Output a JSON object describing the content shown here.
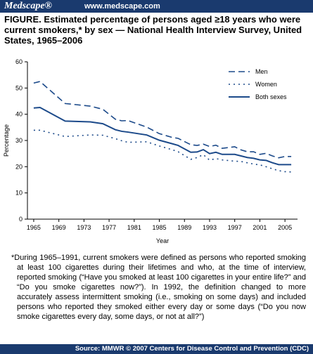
{
  "header": {
    "brand": "Medscape®",
    "url": "www.medscape.com"
  },
  "chart_data": {
    "type": "line",
    "title": "FIGURE. Estimated percentage of persons aged ≥18 years who were current smokers,* by sex — National Health Interview Survey, United States, 1965–2006",
    "x_label": "Year",
    "y_label": "Percentage",
    "x": [
      1965,
      1966,
      1970,
      1974,
      1976,
      1978,
      1979,
      1980,
      1983,
      1985,
      1987,
      1988,
      1990,
      1991,
      1992,
      1993,
      1994,
      1995,
      1997,
      1998,
      1999,
      2000,
      2001,
      2002,
      2003,
      2004,
      2005,
      2006
    ],
    "series": [
      {
        "name": "Men",
        "color": "#1c4a8a",
        "style": "dashed",
        "values": [
          51.9,
          52.5,
          44.1,
          43.1,
          41.9,
          38.1,
          37.5,
          37.6,
          35.1,
          32.6,
          31.2,
          30.8,
          28.4,
          28.1,
          28.6,
          27.7,
          28.2,
          27.0,
          27.6,
          26.4,
          25.7,
          25.7,
          24.7,
          25.1,
          24.1,
          23.4,
          23.9,
          23.9
        ]
      },
      {
        "name": "Women",
        "color": "#1c4a8a",
        "style": "dotted",
        "values": [
          33.9,
          33.9,
          31.5,
          32.1,
          32.0,
          30.7,
          29.9,
          29.3,
          29.5,
          27.9,
          26.5,
          25.7,
          22.8,
          23.5,
          24.6,
          22.5,
          23.1,
          22.6,
          22.1,
          22.0,
          21.5,
          21.0,
          20.7,
          20.0,
          19.2,
          18.5,
          18.1,
          18.0
        ]
      },
      {
        "name": "Both sexes",
        "color": "#1c4a8a",
        "style": "solid",
        "values": [
          42.4,
          42.6,
          37.4,
          37.1,
          36.4,
          34.1,
          33.5,
          33.2,
          32.1,
          30.1,
          28.8,
          28.1,
          25.5,
          25.6,
          26.5,
          25.0,
          25.5,
          24.7,
          24.7,
          24.1,
          23.5,
          23.2,
          22.6,
          22.4,
          21.5,
          20.8,
          20.8,
          20.8
        ]
      }
    ],
    "xlim": [
      1964,
      2007
    ],
    "xticks": [
      1965,
      1969,
      1973,
      1977,
      1981,
      1985,
      1989,
      1993,
      1997,
      2001,
      2005
    ],
    "ylim": [
      0,
      60
    ],
    "yticks": [
      0,
      10,
      20,
      30,
      40,
      50,
      60
    ],
    "legend": "upper right",
    "footnote": "*During 1965–1991, current smokers were defined as persons who reported smoking at least 100 cigarettes during their lifetimes and who, at the time of interview, reported smoking (“Have you smoked at least 100 cigarettes in your entire life?” and “Do you smoke cigarettes now?”). In 1992, the definition changed to more accurately assess intermittent smoking (i.e., smoking on some days) and included persons who reported they smoked either every day or some days (“Do you now smoke cigarettes every day, some days, or not at all?”)",
    "source": "Source: MMWR © 2007 Centers for Disease Control and Prevention (CDC)"
  }
}
